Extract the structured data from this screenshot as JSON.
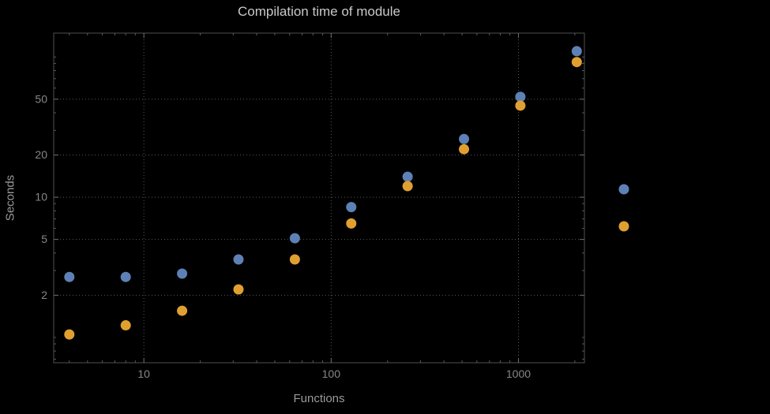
{
  "chart_data": {
    "type": "scatter",
    "title": "Compilation time of module",
    "xlabel": "Functions",
    "ylabel": "Seconds",
    "x_scale": "log",
    "y_scale": "log",
    "xlim": [
      3.3,
      2250
    ],
    "ylim": [
      0.66,
      148
    ],
    "x_ticks": [
      10,
      100,
      1000
    ],
    "y_ticks": [
      2,
      5,
      10,
      20,
      50
    ],
    "grid": true,
    "background": "#000000",
    "x": [
      4,
      8,
      16,
      32,
      64,
      128,
      256,
      512,
      1024,
      2048
    ],
    "series": [
      {
        "key": "blue",
        "color": "#5e81b5",
        "values": [
          2.7,
          2.7,
          2.85,
          3.6,
          5.1,
          8.5,
          14,
          26,
          52,
          110
        ]
      },
      {
        "key": "orange",
        "color": "#e0a030",
        "values": [
          1.05,
          1.22,
          1.55,
          2.2,
          3.6,
          6.5,
          12,
          22,
          45,
          92
        ]
      }
    ],
    "legend_position": "right-outside"
  }
}
